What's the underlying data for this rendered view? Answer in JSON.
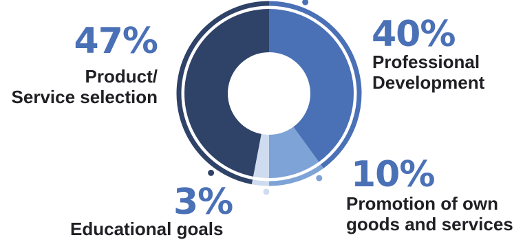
{
  "chart_data": {
    "type": "pie",
    "slices": [
      {
        "value": 40,
        "percent_label": "40%",
        "label": "Professional\nDevelopment",
        "color": "#4a70b6"
      },
      {
        "value": 10,
        "percent_label": "10%",
        "label": "Promotion of own\ngoods and services",
        "color": "#7ea3d6"
      },
      {
        "value": 3,
        "percent_label": "3%",
        "label": "Educational goals",
        "color": "#cfdcef"
      },
      {
        "value": 47,
        "percent_label": "47%",
        "label": "Product/\nService selection",
        "color": "#2f4268"
      }
    ]
  }
}
